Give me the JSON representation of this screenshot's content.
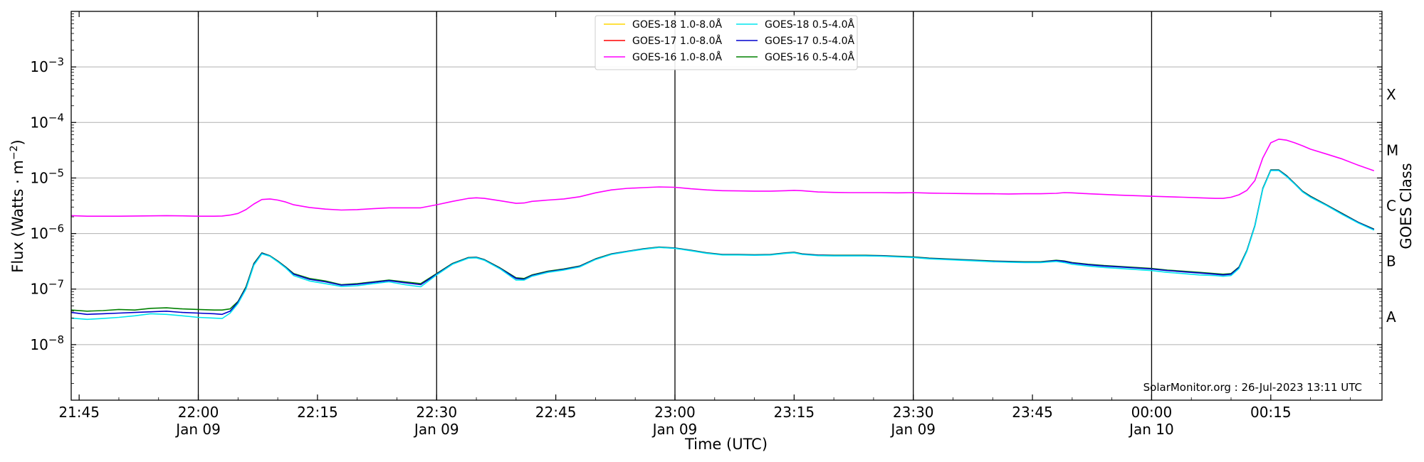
{
  "chart_data": {
    "type": "line",
    "title": "",
    "xlabel": "Time (UTC)",
    "ylabel": "Flux (Watts · m",
    "ylabel_sup": "−2",
    "ylabel_close": ")",
    "y2label": "GOES Class",
    "y_scale": "log",
    "ylim": [
      1e-09,
      0.01
    ],
    "xlim": [
      "2023-01-09T21:44",
      "2023-01-10T00:29"
    ],
    "grid": "horizontal",
    "legend_position": "top-center",
    "x_ticks": [
      {
        "time": "2023-01-09T21:45",
        "label": "21:45",
        "sub": ""
      },
      {
        "time": "2023-01-09T22:00",
        "label": "22:00",
        "sub": "Jan 09"
      },
      {
        "time": "2023-01-09T22:15",
        "label": "22:15",
        "sub": ""
      },
      {
        "time": "2023-01-09T22:30",
        "label": "22:30",
        "sub": "Jan 09"
      },
      {
        "time": "2023-01-09T22:45",
        "label": "22:45",
        "sub": ""
      },
      {
        "time": "2023-01-09T23:00",
        "label": "23:00",
        "sub": "Jan 09"
      },
      {
        "time": "2023-01-09T23:15",
        "label": "23:15",
        "sub": ""
      },
      {
        "time": "2023-01-09T23:30",
        "label": "23:30",
        "sub": "Jan 09"
      },
      {
        "time": "2023-01-09T23:45",
        "label": "23:45",
        "sub": ""
      },
      {
        "time": "2023-01-10T00:00",
        "label": "00:00",
        "sub": "Jan 10"
      },
      {
        "time": "2023-01-10T00:15",
        "label": "00:15",
        "sub": ""
      }
    ],
    "vlines": [
      "2023-01-09T22:00",
      "2023-01-09T22:30",
      "2023-01-09T23:00",
      "2023-01-09T23:30",
      "2023-01-10T00:00"
    ],
    "y_ticks": [
      {
        "value": 0.001,
        "base": "10",
        "exp": "−3"
      },
      {
        "value": 0.0001,
        "base": "10",
        "exp": "−4"
      },
      {
        "value": 1e-05,
        "base": "10",
        "exp": "−5"
      },
      {
        "value": 1e-06,
        "base": "10",
        "exp": "−6"
      },
      {
        "value": 1e-07,
        "base": "10",
        "exp": "−7"
      },
      {
        "value": 1e-08,
        "base": "10",
        "exp": "−8"
      }
    ],
    "goes_classes": [
      {
        "label": "X",
        "value": 0.00031623
      },
      {
        "label": "M",
        "value": 3.1623e-05
      },
      {
        "label": "C",
        "value": 3.1623e-06
      },
      {
        "label": "B",
        "value": 3.1623e-07
      },
      {
        "label": "A",
        "value": 3.1623e-08
      }
    ],
    "legend": [
      {
        "name": "GOES-18 1.0-8.0Å",
        "color": "#ffd700"
      },
      {
        "name": "GOES-18 0.5-4.0Å",
        "color": "#00e5ee"
      },
      {
        "name": "GOES-17 1.0-8.0Å",
        "color": "#ff0000"
      },
      {
        "name": "GOES-17 0.5-4.0Å",
        "color": "#0000cd"
      },
      {
        "name": "GOES-16 1.0-8.0Å",
        "color": "#ff00ff"
      },
      {
        "name": "GOES-16 0.5-4.0Å",
        "color": "#008000"
      }
    ],
    "x": [
      "2023-01-09T21:44",
      "2023-01-09T21:46",
      "2023-01-09T21:48",
      "2023-01-09T21:50",
      "2023-01-09T21:52",
      "2023-01-09T21:54",
      "2023-01-09T21:56",
      "2023-01-09T21:58",
      "2023-01-09T22:00",
      "2023-01-09T22:02",
      "2023-01-09T22:03",
      "2023-01-09T22:04",
      "2023-01-09T22:05",
      "2023-01-09T22:06",
      "2023-01-09T22:07",
      "2023-01-09T22:08",
      "2023-01-09T22:09",
      "2023-01-09T22:10",
      "2023-01-09T22:11",
      "2023-01-09T22:12",
      "2023-01-09T22:14",
      "2023-01-09T22:16",
      "2023-01-09T22:18",
      "2023-01-09T22:20",
      "2023-01-09T22:22",
      "2023-01-09T22:24",
      "2023-01-09T22:26",
      "2023-01-09T22:28",
      "2023-01-09T22:30",
      "2023-01-09T22:32",
      "2023-01-09T22:34",
      "2023-01-09T22:35",
      "2023-01-09T22:36",
      "2023-01-09T22:38",
      "2023-01-09T22:40",
      "2023-01-09T22:41",
      "2023-01-09T22:42",
      "2023-01-09T22:44",
      "2023-01-09T22:46",
      "2023-01-09T22:48",
      "2023-01-09T22:50",
      "2023-01-09T22:52",
      "2023-01-09T22:54",
      "2023-01-09T22:56",
      "2023-01-09T22:58",
      "2023-01-09T23:00",
      "2023-01-09T23:02",
      "2023-01-09T23:04",
      "2023-01-09T23:06",
      "2023-01-09T23:08",
      "2023-01-09T23:10",
      "2023-01-09T23:12",
      "2023-01-09T23:14",
      "2023-01-09T23:15",
      "2023-01-09T23:16",
      "2023-01-09T23:18",
      "2023-01-09T23:20",
      "2023-01-09T23:22",
      "2023-01-09T23:24",
      "2023-01-09T23:26",
      "2023-01-09T23:28",
      "2023-01-09T23:30",
      "2023-01-09T23:32",
      "2023-01-09T23:34",
      "2023-01-09T23:36",
      "2023-01-09T23:38",
      "2023-01-09T23:40",
      "2023-01-09T23:42",
      "2023-01-09T23:44",
      "2023-01-09T23:46",
      "2023-01-09T23:48",
      "2023-01-09T23:49",
      "2023-01-09T23:50",
      "2023-01-09T23:52",
      "2023-01-09T23:54",
      "2023-01-09T23:56",
      "2023-01-09T23:58",
      "2023-01-10T00:00",
      "2023-01-10T00:02",
      "2023-01-10T00:04",
      "2023-01-10T00:06",
      "2023-01-10T00:08",
      "2023-01-10T00:09",
      "2023-01-10T00:10",
      "2023-01-10T00:11",
      "2023-01-10T00:12",
      "2023-01-10T00:13",
      "2023-01-10T00:14",
      "2023-01-10T00:15",
      "2023-01-10T00:16",
      "2023-01-10T00:17",
      "2023-01-10T00:18",
      "2023-01-10T00:19",
      "2023-01-10T00:20",
      "2023-01-10T00:22",
      "2023-01-10T00:24",
      "2023-01-10T00:26",
      "2023-01-10T00:28"
    ],
    "series": [
      {
        "name": "GOES-16 1.0-8.0Å",
        "color": "#ff00ff",
        "values": [
          2.1e-06,
          2.05e-06,
          2.05e-06,
          2.05e-06,
          2.07e-06,
          2.08e-06,
          2.1e-06,
          2.08e-06,
          2.05e-06,
          2.05e-06,
          2.07e-06,
          2.15e-06,
          2.3e-06,
          2.7e-06,
          3.4e-06,
          4.1e-06,
          4.2e-06,
          4e-06,
          3.7e-06,
          3.3e-06,
          2.95e-06,
          2.75e-06,
          2.65e-06,
          2.7e-06,
          2.8e-06,
          2.9e-06,
          2.9e-06,
          2.9e-06,
          3.3e-06,
          3.8e-06,
          4.3e-06,
          4.4e-06,
          4.3e-06,
          3.9e-06,
          3.5e-06,
          3.55e-06,
          3.8e-06,
          4e-06,
          4.2e-06,
          4.6e-06,
          5.4e-06,
          6.1e-06,
          6.5e-06,
          6.7e-06,
          6.9e-06,
          6.8e-06,
          6.4e-06,
          6.1e-06,
          5.9e-06,
          5.85e-06,
          5.8e-06,
          5.8e-06,
          5.9e-06,
          6e-06,
          5.9e-06,
          5.6e-06,
          5.5e-06,
          5.45e-06,
          5.45e-06,
          5.45e-06,
          5.4e-06,
          5.45e-06,
          5.35e-06,
          5.3e-06,
          5.25e-06,
          5.2e-06,
          5.2e-06,
          5.15e-06,
          5.2e-06,
          5.2e-06,
          5.3e-06,
          5.45e-06,
          5.4e-06,
          5.2e-06,
          5.05e-06,
          4.9e-06,
          4.8e-06,
          4.7e-06,
          4.6e-06,
          4.5e-06,
          4.4e-06,
          4.3e-06,
          4.3e-06,
          4.5e-06,
          5e-06,
          6e-06,
          9e-06,
          2.3e-05,
          4.3e-05,
          5e-05,
          4.8e-05,
          4.3e-05,
          3.8e-05,
          3.3e-05,
          2.7e-05,
          2.2e-05,
          1.7e-05,
          1.35e-05
        ]
      },
      {
        "name": "GOES-16 0.5-4.0Å",
        "color": "#008000",
        "values": [
          4.2e-08,
          4e-08,
          4.1e-08,
          4.3e-08,
          4.2e-08,
          4.5e-08,
          4.6e-08,
          4.4e-08,
          4.3e-08,
          4.2e-08,
          4.2e-08,
          4.4e-08,
          6e-08,
          1.1e-07,
          2.9e-07,
          4.5e-07,
          4e-07,
          3.2e-07,
          2.5e-07,
          1.9e-07,
          1.55e-07,
          1.4e-07,
          1.2e-07,
          1.25e-07,
          1.35e-07,
          1.45e-07,
          1.35e-07,
          1.25e-07,
          1.9e-07,
          2.9e-07,
          3.7e-07,
          3.75e-07,
          3.4e-07,
          2.4e-07,
          1.6e-07,
          1.55e-07,
          1.8e-07,
          2.1e-07,
          2.3e-07,
          2.6e-07,
          3.5e-07,
          4.3e-07,
          4.8e-07,
          5.3e-07,
          5.7e-07,
          5.5e-07,
          5e-07,
          4.5e-07,
          4.2e-07,
          4.2e-07,
          4.15e-07,
          4.2e-07,
          4.5e-07,
          4.6e-07,
          4.3e-07,
          4.1e-07,
          4.05e-07,
          4.05e-07,
          4.05e-07,
          4e-07,
          3.9e-07,
          3.8e-07,
          3.6e-07,
          3.5e-07,
          3.4e-07,
          3.3e-07,
          3.2e-07,
          3.15e-07,
          3.1e-07,
          3.1e-07,
          3.3e-07,
          3.2e-07,
          3e-07,
          2.8e-07,
          2.65e-07,
          2.55e-07,
          2.45e-07,
          2.35e-07,
          2.2e-07,
          2.1e-07,
          2e-07,
          1.9e-07,
          1.85e-07,
          1.9e-07,
          2.5e-07,
          5e-07,
          1.4e-06,
          6.5e-06,
          1.4e-05,
          1.4e-05,
          1.1e-05,
          8e-06,
          5.8e-06,
          4.7e-06,
          3.3e-06,
          2.3e-06,
          1.6e-06,
          1.2e-06
        ]
      },
      {
        "name": "GOES-17 0.5-4.0Å",
        "color": "#0000cd",
        "values": [
          3.8e-08,
          3.5e-08,
          3.6e-08,
          3.7e-08,
          3.8e-08,
          3.9e-08,
          4e-08,
          3.8e-08,
          3.7e-08,
          3.6e-08,
          3.5e-08,
          4e-08,
          5.8e-08,
          1.05e-07,
          2.8e-07,
          4.4e-07,
          3.95e-07,
          3.15e-07,
          2.45e-07,
          1.85e-07,
          1.5e-07,
          1.35e-07,
          1.18e-07,
          1.22e-07,
          1.32e-07,
          1.42e-07,
          1.3e-07,
          1.2e-07,
          1.85e-07,
          2.85e-07,
          3.65e-07,
          3.7e-07,
          3.35e-07,
          2.35e-07,
          1.55e-07,
          1.5e-07,
          1.75e-07,
          2.05e-07,
          2.25e-07,
          2.55e-07,
          3.45e-07,
          4.25e-07,
          4.75e-07,
          5.25e-07,
          5.65e-07,
          5.45e-07,
          4.95e-07,
          4.45e-07,
          4.15e-07,
          4.15e-07,
          4.1e-07,
          4.15e-07,
          4.45e-07,
          4.55e-07,
          4.25e-07,
          4.05e-07,
          4e-07,
          4e-07,
          4e-07,
          3.95e-07,
          3.85e-07,
          3.75e-07,
          3.55e-07,
          3.45e-07,
          3.35e-07,
          3.25e-07,
          3.15e-07,
          3.1e-07,
          3.05e-07,
          3.05e-07,
          3.25e-07,
          3.15e-07,
          2.95e-07,
          2.75e-07,
          2.6e-07,
          2.5e-07,
          2.4e-07,
          2.3e-07,
          2.15e-07,
          2.05e-07,
          1.95e-07,
          1.85e-07,
          1.8e-07,
          1.85e-07,
          2.45e-07,
          4.9e-07,
          1.38e-06,
          6.4e-06,
          1.38e-05,
          1.38e-05,
          1.08e-05,
          7.9e-06,
          5.7e-06,
          4.6e-06,
          3.25e-06,
          2.25e-06,
          1.58e-06,
          1.18e-06
        ]
      },
      {
        "name": "GOES-18 0.5-4.0Å",
        "color": "#00e5ee",
        "values": [
          3e-08,
          2.85e-08,
          2.95e-08,
          3.1e-08,
          3.3e-08,
          3.6e-08,
          3.5e-08,
          3.3e-08,
          3.1e-08,
          3e-08,
          2.95e-08,
          3.7e-08,
          5.5e-08,
          1e-07,
          2.7e-07,
          4.3e-07,
          3.9e-07,
          3.1e-07,
          2.4e-07,
          1.75e-07,
          1.4e-07,
          1.25e-07,
          1.12e-07,
          1.15e-07,
          1.25e-07,
          1.35e-07,
          1.2e-07,
          1.1e-07,
          1.8e-07,
          2.8e-07,
          3.6e-07,
          3.65e-07,
          3.3e-07,
          2.3e-07,
          1.45e-07,
          1.45e-07,
          1.7e-07,
          2e-07,
          2.2e-07,
          2.5e-07,
          3.4e-07,
          4.2e-07,
          4.7e-07,
          5.2e-07,
          5.6e-07,
          5.4e-07,
          4.9e-07,
          4.4e-07,
          4.1e-07,
          4.1e-07,
          4.05e-07,
          4.1e-07,
          4.4e-07,
          4.5e-07,
          4.2e-07,
          4e-07,
          3.95e-07,
          3.95e-07,
          3.95e-07,
          3.9e-07,
          3.8e-07,
          3.7e-07,
          3.5e-07,
          3.4e-07,
          3.3e-07,
          3.2e-07,
          3.1e-07,
          3.05e-07,
          3e-07,
          3e-07,
          3.15e-07,
          3e-07,
          2.8e-07,
          2.6e-07,
          2.45e-07,
          2.35e-07,
          2.25e-07,
          2.15e-07,
          2e-07,
          1.9e-07,
          1.8e-07,
          1.75e-07,
          1.7e-07,
          1.75e-07,
          2.35e-07,
          4.8e-07,
          1.35e-06,
          6.3e-06,
          1.36e-05,
          1.36e-05,
          1.06e-05,
          7.8e-06,
          5.6e-06,
          4.5e-06,
          3.2e-06,
          2.2e-06,
          1.55e-06,
          1.15e-06
        ]
      }
    ],
    "credit": "SolarMonitor.org : 26-Jul-2023 13:11 UTC"
  }
}
